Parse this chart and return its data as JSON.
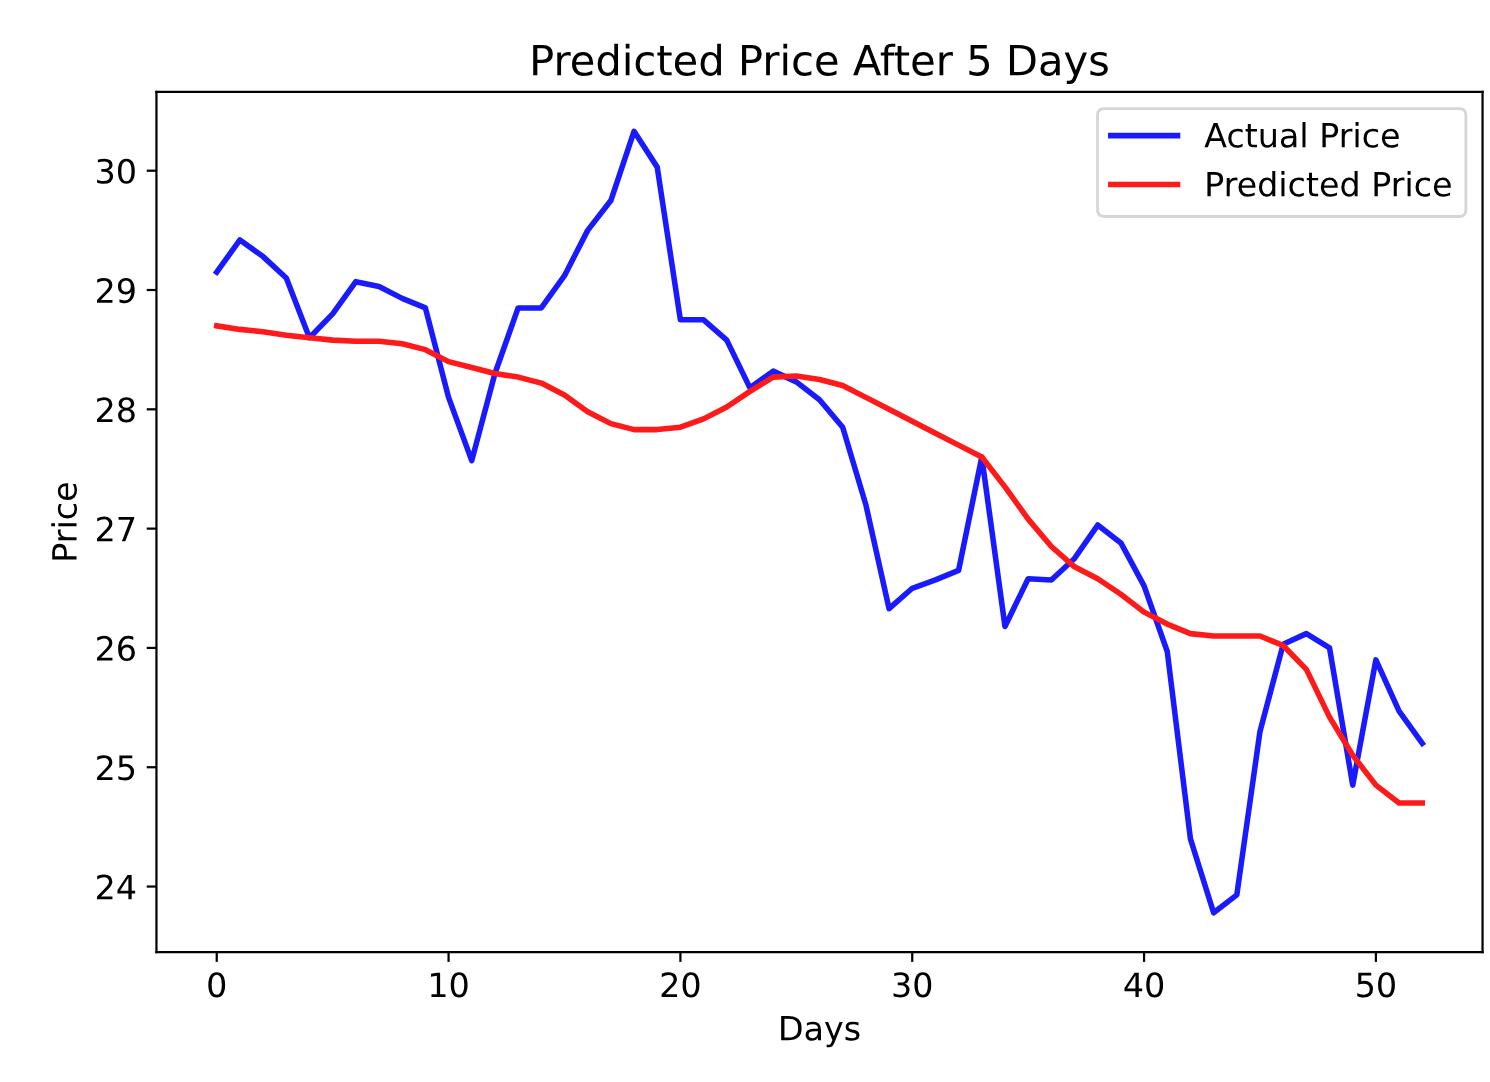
{
  "chart_data": {
    "type": "line",
    "title": "Predicted Price After 5 Days",
    "xlabel": "Days",
    "ylabel": "Price",
    "x": [
      0,
      1,
      2,
      3,
      4,
      5,
      6,
      7,
      8,
      9,
      10,
      11,
      12,
      13,
      14,
      15,
      16,
      17,
      18,
      19,
      20,
      21,
      22,
      23,
      24,
      25,
      26,
      27,
      28,
      29,
      30,
      31,
      32,
      33,
      34,
      35,
      36,
      37,
      38,
      39,
      40,
      41,
      42,
      43,
      44,
      45,
      46,
      47,
      48,
      49,
      50,
      51,
      52
    ],
    "series": [
      {
        "name": "Actual Price",
        "color": "#1a1aff",
        "values": [
          29.15,
          29.42,
          29.28,
          29.1,
          28.6,
          28.8,
          29.07,
          29.03,
          28.93,
          28.85,
          28.1,
          27.57,
          28.3,
          28.85,
          28.85,
          29.12,
          29.5,
          29.75,
          30.33,
          30.03,
          28.75,
          28.75,
          28.58,
          28.18,
          28.32,
          28.23,
          28.08,
          27.85,
          27.2,
          26.33,
          26.5,
          26.57,
          26.65,
          27.6,
          26.18,
          26.58,
          26.57,
          26.75,
          27.03,
          26.88,
          26.52,
          25.97,
          24.4,
          23.78,
          23.93,
          25.3,
          26.03,
          26.12,
          26.0,
          24.85,
          25.9,
          25.47,
          25.2
        ]
      },
      {
        "name": "Predicted Price",
        "color": "#ff1a1a",
        "values": [
          28.7,
          28.67,
          28.65,
          28.62,
          28.6,
          28.58,
          28.57,
          28.57,
          28.55,
          28.5,
          28.4,
          28.35,
          28.3,
          28.27,
          28.22,
          28.12,
          27.98,
          27.88,
          27.83,
          27.83,
          27.85,
          27.92,
          28.02,
          28.15,
          28.27,
          28.28,
          28.25,
          28.2,
          28.1,
          28.0,
          27.9,
          27.8,
          27.7,
          27.6,
          27.35,
          27.08,
          26.85,
          26.68,
          26.58,
          26.45,
          26.3,
          26.2,
          26.12,
          26.1,
          26.1,
          26.1,
          26.02,
          25.82,
          25.42,
          25.1,
          24.85,
          24.7,
          24.7
        ]
      }
    ],
    "xlim": [
      -2.6,
      54.6
    ],
    "xticks": [
      0,
      10,
      20,
      30,
      40,
      50
    ],
    "ylim": [
      23.45,
      30.66
    ],
    "yticks": [
      24,
      25,
      26,
      27,
      28,
      29,
      30
    ],
    "legend": "top right",
    "line_style": "solid"
  }
}
